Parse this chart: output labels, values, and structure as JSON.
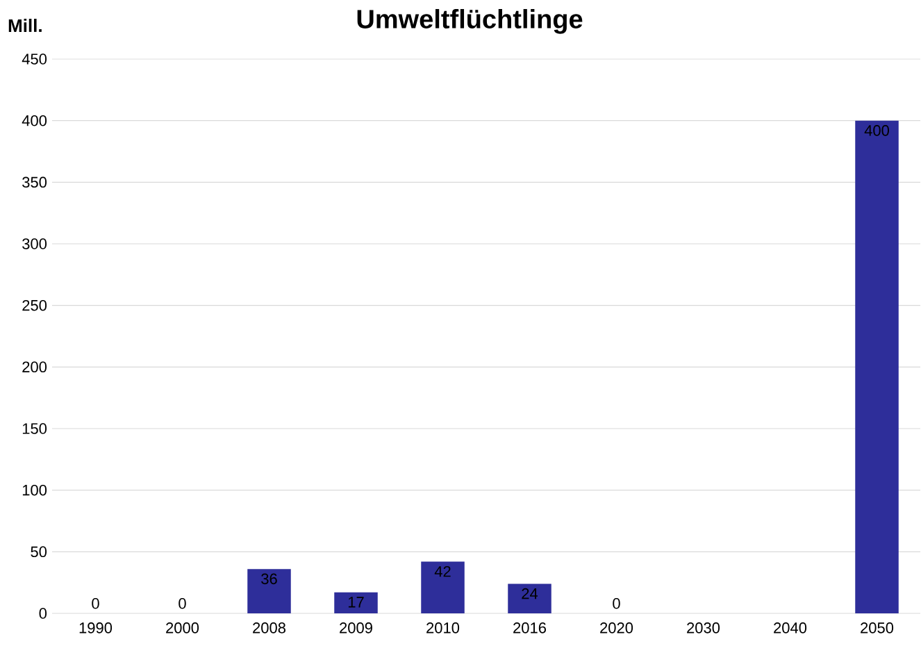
{
  "chart_data": {
    "type": "bar",
    "title": "Umweltflüchtlinge",
    "ylabel": "Mill.",
    "categories": [
      "1990",
      "2000",
      "2008",
      "2009",
      "2010",
      "2016",
      "2020",
      "2030",
      "2040",
      "2050"
    ],
    "values": [
      0,
      0,
      36,
      17,
      42,
      24,
      0,
      null,
      null,
      400
    ],
    "color": "#2e2e9a",
    "ylim": [
      0,
      450
    ],
    "yticks": [
      0,
      50,
      100,
      150,
      200,
      250,
      300,
      350,
      400,
      450
    ],
    "grid": "y",
    "data_labels": true
  }
}
